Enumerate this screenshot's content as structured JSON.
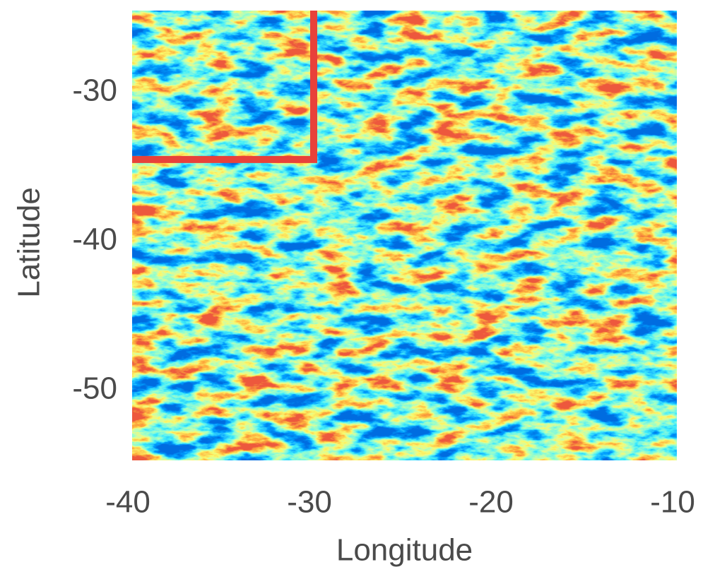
{
  "chart_data": {
    "type": "heatmap",
    "xlabel": "Longitude",
    "ylabel": "Latitude",
    "xlim": [
      -40,
      -10
    ],
    "ylim": [
      -54.7,
      -24.5
    ],
    "xticks": [
      -40,
      -30,
      -20,
      -10
    ],
    "yticks": [
      -50,
      -40,
      -30
    ],
    "box": {
      "color": "#e8413a",
      "x": [
        -40,
        -30
      ],
      "y": [
        -34.5,
        -24.5
      ]
    }
  }
}
